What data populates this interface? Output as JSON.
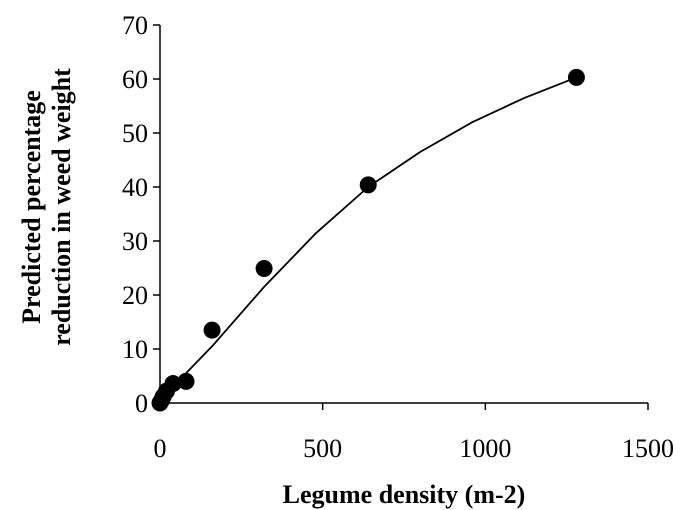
{
  "chart_data": {
    "type": "scatter",
    "title": "",
    "xlabel": "Legume density (m-2)",
    "ylabel_lines": [
      "Predicted percentage",
      "reduction in weed weight"
    ],
    "xlim": [
      0,
      1500
    ],
    "ylim": [
      0,
      70
    ],
    "xticks": [
      0,
      500,
      1000,
      1500
    ],
    "yticks": [
      0,
      10,
      20,
      30,
      40,
      50,
      60,
      70
    ],
    "grid": false,
    "legend": "none",
    "series": [
      {
        "kind": "points",
        "x": [
          0,
          5,
          10,
          20,
          40,
          80,
          160,
          320,
          640,
          1280
        ],
        "y": [
          0,
          0.5,
          1.2,
          2.2,
          3.6,
          4.0,
          13.5,
          24.9,
          40.4,
          60.3
        ]
      },
      {
        "kind": "fitted-curve",
        "x": [
          0,
          10,
          20,
          40,
          80,
          160,
          320,
          480,
          640,
          800,
          960,
          1120,
          1280
        ],
        "y": [
          0,
          0.7,
          1.4,
          2.7,
          5.5,
          10.5,
          21.5,
          31.5,
          40.0,
          46.5,
          52.0,
          56.5,
          60.3
        ]
      }
    ],
    "colors": {
      "marker": "#000000",
      "line": "#000000",
      "axis": "#000000"
    }
  }
}
